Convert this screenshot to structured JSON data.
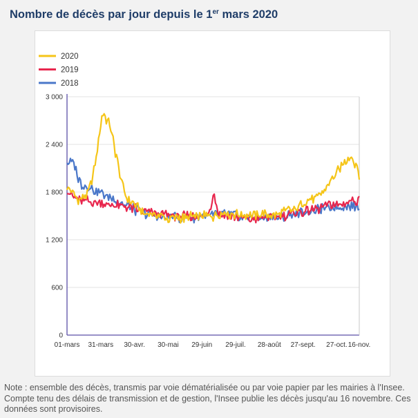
{
  "header": {
    "title_before": "Nombre de décès par jour depuis le 1",
    "title_sup": "er",
    "title_after": " mars 2020"
  },
  "note": "Note : ensemble des décès, transmis par voie dématérialisée ou par voie papier par les mairies à l'Insee. Compte tenu des délais de transmission et de gestion, l'Insee publie les décès jusqu'au 16 novembre. Ces données sont provisoires.",
  "chart_data": {
    "type": "line",
    "title": "Nombre de décès par jour depuis le 1er mars 2020",
    "xlabel": "",
    "ylabel": "",
    "x_range_days": [
      0,
      260
    ],
    "ylim": [
      0,
      3000
    ],
    "yticks": [
      0,
      600,
      1200,
      1800,
      2400,
      3000
    ],
    "ytick_labels": [
      "0",
      "600",
      "1 200",
      "1 800",
      "2 400",
      "3 000"
    ],
    "xticks": [
      {
        "day": 0,
        "label": "01-mars"
      },
      {
        "day": 30,
        "label": "31-mars"
      },
      {
        "day": 60,
        "label": "30-avr."
      },
      {
        "day": 90,
        "label": "30-mai"
      },
      {
        "day": 120,
        "label": "29-juin"
      },
      {
        "day": 150,
        "label": "29-juil."
      },
      {
        "day": 180,
        "label": "28-août"
      },
      {
        "day": 210,
        "label": "27-sept."
      },
      {
        "day": 240,
        "label": "27-oct."
      },
      {
        "day": 260,
        "label": "16-nov."
      }
    ],
    "legend_position": "top-left",
    "series": [
      {
        "name": "2020",
        "color": "#f5c518",
        "points": [
          [
            0,
            1850
          ],
          [
            5,
            1780
          ],
          [
            10,
            1700
          ],
          [
            14,
            1730
          ],
          [
            18,
            1780
          ],
          [
            22,
            1950
          ],
          [
            26,
            2250
          ],
          [
            29,
            2550
          ],
          [
            31,
            2750
          ],
          [
            33,
            2800
          ],
          [
            35,
            2720
          ],
          [
            37,
            2680
          ],
          [
            39,
            2600
          ],
          [
            41,
            2450
          ],
          [
            43,
            2300
          ],
          [
            45,
            2200
          ],
          [
            47,
            2000
          ],
          [
            49,
            1900
          ],
          [
            51,
            1800
          ],
          [
            53,
            1720
          ],
          [
            55,
            1700
          ],
          [
            58,
            1680
          ],
          [
            62,
            1620
          ],
          [
            66,
            1560
          ],
          [
            70,
            1520
          ],
          [
            75,
            1520
          ],
          [
            80,
            1500
          ],
          [
            85,
            1480
          ],
          [
            90,
            1460
          ],
          [
            95,
            1470
          ],
          [
            100,
            1480
          ],
          [
            105,
            1470
          ],
          [
            110,
            1500
          ],
          [
            115,
            1480
          ],
          [
            120,
            1490
          ],
          [
            125,
            1500
          ],
          [
            130,
            1500
          ],
          [
            135,
            1520
          ],
          [
            140,
            1560
          ],
          [
            145,
            1510
          ],
          [
            150,
            1520
          ],
          [
            155,
            1500
          ],
          [
            160,
            1520
          ],
          [
            165,
            1510
          ],
          [
            170,
            1500
          ],
          [
            175,
            1520
          ],
          [
            180,
            1500
          ],
          [
            185,
            1520
          ],
          [
            190,
            1530
          ],
          [
            195,
            1560
          ],
          [
            200,
            1580
          ],
          [
            205,
            1600
          ],
          [
            210,
            1650
          ],
          [
            215,
            1700
          ],
          [
            220,
            1720
          ],
          [
            225,
            1760
          ],
          [
            230,
            1840
          ],
          [
            235,
            1950
          ],
          [
            240,
            2050
          ],
          [
            245,
            2150
          ],
          [
            248,
            2200
          ],
          [
            250,
            2250
          ],
          [
            253,
            2250
          ],
          [
            255,
            2200
          ],
          [
            257,
            2150
          ],
          [
            258,
            2100
          ],
          [
            259,
            2050
          ],
          [
            260,
            2000
          ]
        ]
      },
      {
        "name": "2019",
        "color": "#e8264d",
        "points": [
          [
            0,
            1850
          ],
          [
            5,
            1750
          ],
          [
            10,
            1700
          ],
          [
            20,
            1680
          ],
          [
            30,
            1660
          ],
          [
            40,
            1640
          ],
          [
            50,
            1620
          ],
          [
            60,
            1590
          ],
          [
            70,
            1560
          ],
          [
            80,
            1530
          ],
          [
            90,
            1510
          ],
          [
            100,
            1500
          ],
          [
            110,
            1490
          ],
          [
            120,
            1490
          ],
          [
            125,
            1520
          ],
          [
            128,
            1600
          ],
          [
            130,
            1750
          ],
          [
            131,
            1800
          ],
          [
            132,
            1700
          ],
          [
            134,
            1560
          ],
          [
            140,
            1500
          ],
          [
            150,
            1480
          ],
          [
            160,
            1470
          ],
          [
            170,
            1470
          ],
          [
            180,
            1480
          ],
          [
            190,
            1500
          ],
          [
            200,
            1520
          ],
          [
            210,
            1550
          ],
          [
            220,
            1580
          ],
          [
            230,
            1620
          ],
          [
            240,
            1650
          ],
          [
            250,
            1680
          ],
          [
            255,
            1700
          ],
          [
            260,
            1690
          ]
        ]
      },
      {
        "name": "2018",
        "color": "#4a77c9",
        "points": [
          [
            0,
            2180
          ],
          [
            5,
            2150
          ],
          [
            8,
            2100
          ],
          [
            10,
            1950
          ],
          [
            13,
            1900
          ],
          [
            16,
            1880
          ],
          [
            20,
            1850
          ],
          [
            25,
            1820
          ],
          [
            30,
            1790
          ],
          [
            35,
            1750
          ],
          [
            40,
            1720
          ],
          [
            45,
            1680
          ],
          [
            50,
            1650
          ],
          [
            55,
            1620
          ],
          [
            60,
            1580
          ],
          [
            65,
            1560
          ],
          [
            70,
            1530
          ],
          [
            75,
            1520
          ],
          [
            80,
            1500
          ],
          [
            90,
            1490
          ],
          [
            100,
            1480
          ],
          [
            110,
            1480
          ],
          [
            120,
            1500
          ],
          [
            130,
            1510
          ],
          [
            140,
            1530
          ],
          [
            150,
            1500
          ],
          [
            160,
            1480
          ],
          [
            170,
            1470
          ],
          [
            180,
            1480
          ],
          [
            190,
            1490
          ],
          [
            200,
            1510
          ],
          [
            210,
            1540
          ],
          [
            220,
            1560
          ],
          [
            230,
            1590
          ],
          [
            240,
            1610
          ],
          [
            250,
            1630
          ],
          [
            255,
            1620
          ],
          [
            260,
            1600
          ]
        ]
      }
    ]
  }
}
